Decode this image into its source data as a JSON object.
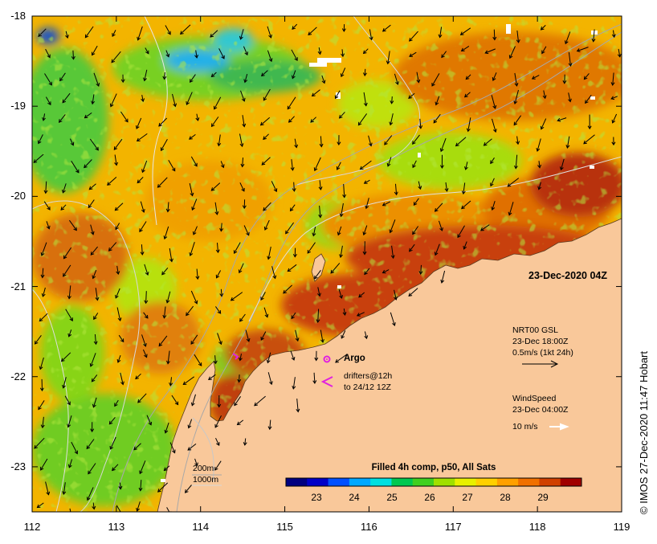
{
  "map": {
    "date_label": "23-Dec-2020 04Z",
    "credit": "© IMOS 27-Dec-2020 11:47 Hobart",
    "lat_ticks": [
      "-18",
      "-19",
      "-20",
      "-21",
      "-22",
      "-23"
    ],
    "lon_ticks": [
      "112",
      "113",
      "114",
      "115",
      "116",
      "117",
      "118",
      "119"
    ],
    "lat_range": [
      -23.5,
      -18
    ],
    "lon_range": [
      112,
      119
    ]
  },
  "legend": {
    "argo_label": "Argo",
    "drifters_line1": "drifters@12h",
    "drifters_line2": "to 24/12 12Z",
    "nrt_line1": "NRT00 GSL",
    "nrt_line2": "23-Dec 18:00Z",
    "nrt_line3": "0.5m/s (1kt 24h)",
    "wind_line1": "WindSpeed",
    "wind_line2": "23-Dec 04:00Z",
    "wind_line3": "10 m/s",
    "depth_200": "200m",
    "depth_1000": "1000m",
    "argo_color": "#e020e0",
    "drifter_color": "#e020e0"
  },
  "colorbar": {
    "title": "Filled 4h comp, p50, All Sats",
    "ticks": [
      "23",
      "24",
      "25",
      "26",
      "27",
      "28",
      "29"
    ],
    "colors": [
      "#000080",
      "#0000c8",
      "#0050ff",
      "#00a8ff",
      "#00e0e0",
      "#00c850",
      "#40d020",
      "#a0e000",
      "#e8f000",
      "#ffd000",
      "#ffa000",
      "#f07000",
      "#d04000",
      "#a00000"
    ]
  },
  "colors": {
    "land": "#f9c89a",
    "warm_sst": "#f0a000",
    "hot_sst": "#c84010",
    "cool_sst": "#7ad000"
  }
}
